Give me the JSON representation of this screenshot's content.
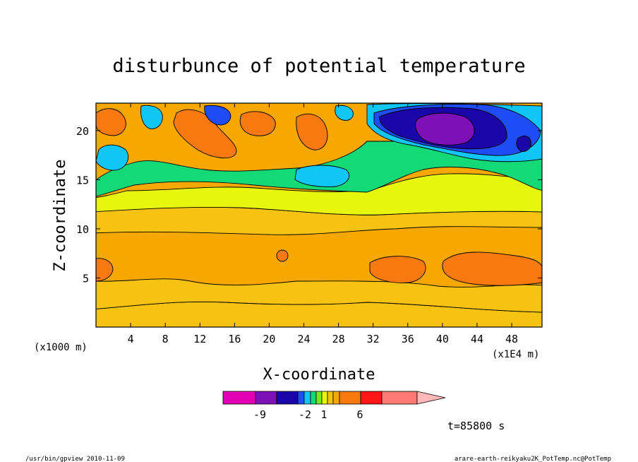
{
  "chart_data": {
    "type": "heatmap",
    "title": "disturbunce of potential temperature",
    "xlabel": "X-coordinate",
    "ylabel": "Z-coordinate",
    "x_unit_label": "(x1E4 m)",
    "z_unit_label": "(x1000 m)",
    "xlim": [
      0,
      51.5
    ],
    "ylim": [
      0,
      22.8
    ],
    "x_ticks": [
      4,
      8,
      12,
      16,
      20,
      24,
      28,
      32,
      36,
      40,
      44,
      48
    ],
    "y_ticks": [
      5,
      10,
      15,
      20
    ],
    "colorbar": {
      "colors": [
        "#e300b4",
        "#7d11b7",
        "#1a06a8",
        "#1e4cf5",
        "#10c6f5",
        "#14d977",
        "#79e81c",
        "#e8f50c",
        "#f7c312",
        "#f7a800",
        "#f77910",
        "#ff1616",
        "#ff7a74",
        "#ffb8b8"
      ],
      "tick_labels": [
        "-9",
        "-2",
        "1",
        "6"
      ]
    },
    "time_label": "t=85800 s",
    "footer_left": "/usr/bin/gpview  2010-11-09",
    "footer_right": "arare-earth-reikyaku2K_PotTemp.nc@PotTemp"
  }
}
